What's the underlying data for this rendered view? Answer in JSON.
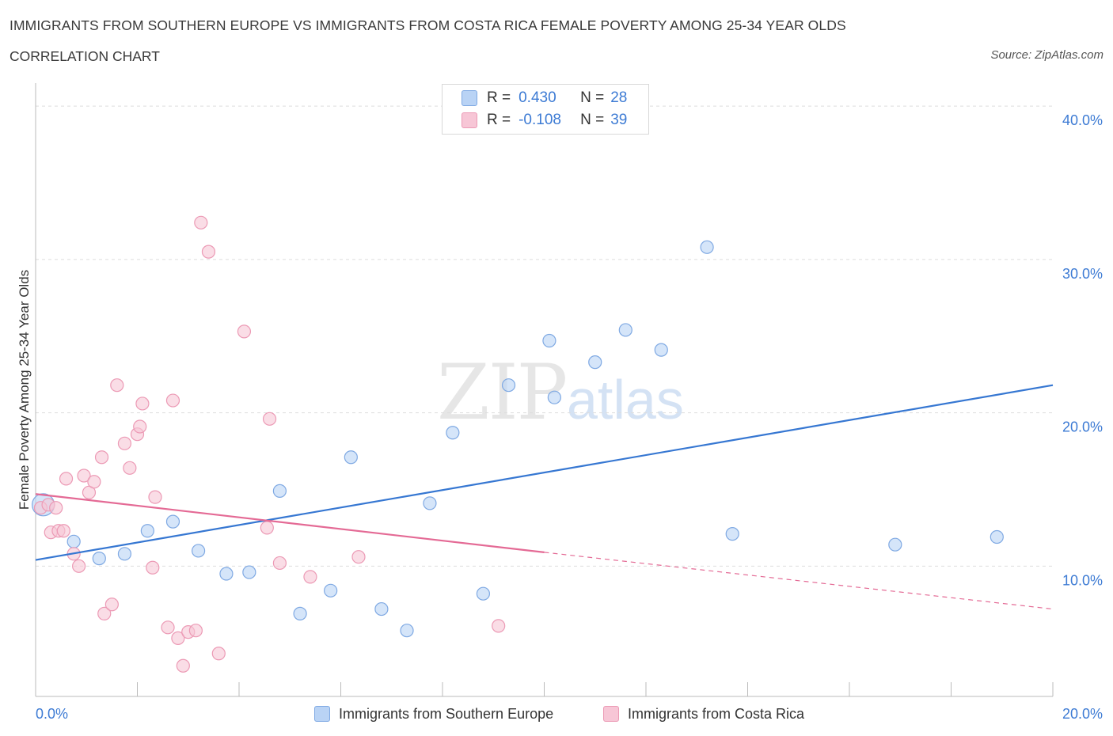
{
  "header": {
    "title": "IMMIGRANTS FROM SOUTHERN EUROPE VS IMMIGRANTS FROM COSTA RICA FEMALE POVERTY AMONG 25-34 YEAR OLDS",
    "subtitle": "CORRELATION CHART",
    "source": "Source: ZipAtlas.com"
  },
  "watermark": {
    "zip": "ZIP",
    "atlas": "atlas"
  },
  "legend": {
    "rows": [
      {
        "r_label": "R =",
        "r_value": "0.430",
        "n_label": "N =",
        "n_value": "28"
      },
      {
        "r_label": "R =",
        "r_value": "-0.108",
        "n_label": "N =",
        "n_value": "39"
      }
    ]
  },
  "bottom_legend": {
    "series1": "Immigrants from Southern Europe",
    "series2": "Immigrants from Costa Rica"
  },
  "colors": {
    "blue_fill": "#b9d3f5",
    "blue_stroke": "#7fa9e3",
    "blue_line": "#3677d2",
    "pink_fill": "#f7c6d6",
    "pink_stroke": "#ec9ab5",
    "pink_line": "#e46a95",
    "axis_label": "#3d7bd4",
    "grid": "#dddddd"
  },
  "chart_data": {
    "type": "scatter",
    "ylabel": "Female Poverty Among 25-34 Year Olds",
    "xlim": [
      0,
      20
    ],
    "ylim": [
      1.5,
      41.5
    ],
    "x_tick_labels": [
      {
        "value": 0,
        "label": "0.0%"
      },
      {
        "value": 20,
        "label": "20.0%"
      }
    ],
    "y_tick_labels": [
      {
        "value": 10,
        "label": "10.0%"
      },
      {
        "value": 20,
        "label": "20.0%"
      },
      {
        "value": 30,
        "label": "30.0%"
      },
      {
        "value": 40,
        "label": "40.0%"
      }
    ],
    "y_grid": [
      10,
      20,
      30,
      40
    ],
    "x_minor_ticks": [
      0,
      2,
      4,
      6,
      8,
      10,
      12,
      14,
      16,
      18,
      20
    ],
    "series": [
      {
        "name": "Immigrants from Southern Europe",
        "color": "blue",
        "points": [
          [
            0.15,
            14.0
          ],
          [
            0.75,
            11.6
          ],
          [
            1.25,
            10.5
          ],
          [
            1.75,
            10.8
          ],
          [
            2.2,
            12.3
          ],
          [
            2.7,
            12.9
          ],
          [
            3.2,
            11.0
          ],
          [
            3.75,
            9.5
          ],
          [
            4.2,
            9.6
          ],
          [
            4.8,
            14.9
          ],
          [
            5.2,
            6.9
          ],
          [
            5.8,
            8.4
          ],
          [
            6.2,
            17.1
          ],
          [
            6.8,
            7.2
          ],
          [
            7.3,
            5.8
          ],
          [
            7.75,
            14.1
          ],
          [
            8.2,
            18.7
          ],
          [
            8.8,
            8.2
          ],
          [
            9.3,
            21.8
          ],
          [
            10.1,
            24.7
          ],
          [
            10.2,
            21.0
          ],
          [
            11.0,
            23.3
          ],
          [
            11.6,
            25.4
          ],
          [
            12.3,
            24.1
          ],
          [
            13.2,
            30.8
          ],
          [
            13.7,
            12.1
          ],
          [
            16.9,
            11.4
          ],
          [
            18.9,
            11.9
          ]
        ],
        "trend": {
          "x": [
            0,
            20
          ],
          "y": [
            10.4,
            21.8
          ]
        }
      },
      {
        "name": "Immigrants from Costa Rica",
        "color": "pink",
        "points": [
          [
            0.1,
            13.8
          ],
          [
            0.25,
            14.0
          ],
          [
            0.3,
            12.2
          ],
          [
            0.45,
            12.3
          ],
          [
            0.55,
            12.3
          ],
          [
            0.6,
            15.7
          ],
          [
            0.75,
            10.8
          ],
          [
            0.85,
            10.0
          ],
          [
            0.95,
            15.9
          ],
          [
            1.05,
            14.8
          ],
          [
            1.15,
            15.5
          ],
          [
            1.3,
            17.1
          ],
          [
            1.35,
            6.9
          ],
          [
            1.5,
            7.5
          ],
          [
            1.6,
            21.8
          ],
          [
            1.75,
            18.0
          ],
          [
            1.85,
            16.4
          ],
          [
            2.0,
            18.6
          ],
          [
            2.05,
            19.1
          ],
          [
            2.1,
            20.6
          ],
          [
            2.3,
            9.9
          ],
          [
            2.35,
            14.5
          ],
          [
            2.6,
            6.0
          ],
          [
            2.7,
            20.8
          ],
          [
            2.8,
            5.3
          ],
          [
            2.9,
            3.5
          ],
          [
            3.0,
            5.7
          ],
          [
            3.15,
            5.8
          ],
          [
            3.25,
            32.4
          ],
          [
            3.4,
            30.5
          ],
          [
            3.6,
            4.3
          ],
          [
            4.1,
            25.3
          ],
          [
            4.55,
            12.5
          ],
          [
            4.6,
            19.6
          ],
          [
            4.8,
            10.2
          ],
          [
            5.4,
            9.3
          ],
          [
            6.35,
            10.6
          ],
          [
            9.1,
            6.1
          ],
          [
            0.4,
            13.8
          ]
        ],
        "trend": {
          "x": [
            0,
            10
          ],
          "y": [
            14.7,
            10.9
          ]
        },
        "trend_dashed": {
          "x": [
            10,
            20
          ],
          "y": [
            10.9,
            7.2
          ]
        }
      }
    ]
  }
}
